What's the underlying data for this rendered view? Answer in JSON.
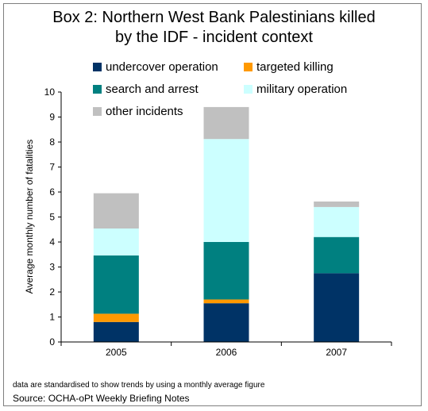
{
  "chart_data": {
    "type": "bar",
    "stacked": true,
    "title": "Box 2: Northern West Bank Palestinians killed by the IDF - incident context",
    "title_lines": [
      "Box 2: Northern West Bank Palestinians killed",
      "by the IDF - incident context"
    ],
    "ylabel": "Average monthly number of fatalities",
    "xlabel": "",
    "categories": [
      "2005",
      "2006",
      "2007"
    ],
    "ylim": [
      0,
      10
    ],
    "yticks": [
      "0",
      "1",
      "2",
      "3",
      "4",
      "5",
      "6",
      "7",
      "8",
      "9",
      "10"
    ],
    "grid": false,
    "legend_position": "top",
    "series": [
      {
        "name": "undercover operation",
        "color": "#003366",
        "values": [
          0.8,
          1.55,
          2.75
        ]
      },
      {
        "name": "targeted killing",
        "color": "#ff9900",
        "values": [
          0.33,
          0.15,
          0
        ]
      },
      {
        "name": "search and arrest",
        "color": "#008080",
        "values": [
          2.33,
          2.3,
          1.45
        ]
      },
      {
        "name": "military operation",
        "color": "#ccffff",
        "values": [
          1.08,
          4.12,
          1.2
        ]
      },
      {
        "name": "other incidents",
        "color": "#c0c0c0",
        "values": [
          1.41,
          1.28,
          0.22
        ]
      }
    ]
  },
  "notes": {
    "footnote": "data are standardised to show trends by using a monthly average figure",
    "source": "Source: OCHA-oPt Weekly Briefing Notes"
  }
}
